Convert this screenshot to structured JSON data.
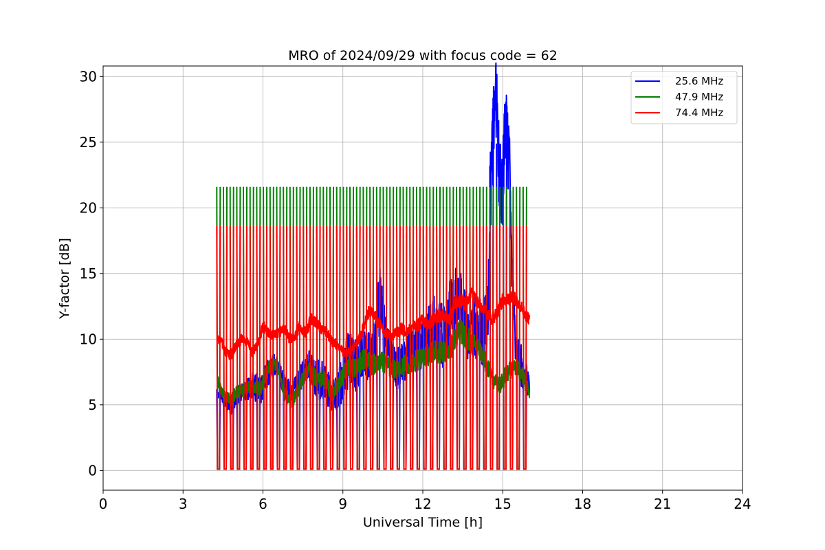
{
  "chart_data": {
    "type": "line",
    "title": "MRO of 2024/09/29 with focus code = 62",
    "xlabel": "Universal Time [h]",
    "ylabel": "Y-factor [dB]",
    "xlim": [
      0,
      24
    ],
    "ylim": [
      -1.5,
      30.8
    ],
    "xticks": [
      0,
      3,
      6,
      9,
      12,
      15,
      18,
      21,
      24
    ],
    "yticks": [
      0,
      5,
      10,
      15,
      20,
      25,
      30
    ],
    "grid": true,
    "legend_position": "top-right",
    "calibration": {
      "x_start": 4.33,
      "x_end": 16.0,
      "interval_h": 0.25,
      "low_value": 0.1
    },
    "series": [
      {
        "name": "25.6 MHz",
        "color": "#0000ff",
        "x": [
          4.3,
          4.5,
          4.8,
          5.0,
          5.3,
          5.6,
          5.9,
          6.2,
          6.5,
          6.8,
          7.1,
          7.4,
          7.7,
          8.0,
          8.3,
          8.6,
          8.9,
          9.2,
          9.5,
          9.8,
          10.1,
          10.4,
          10.7,
          11.0,
          11.3,
          11.6,
          11.9,
          12.2,
          12.5,
          12.8,
          13.1,
          13.4,
          13.7,
          14.0,
          14.3,
          14.45,
          14.55,
          14.65,
          14.75,
          14.85,
          14.95,
          15.05,
          15.15,
          15.25,
          15.35,
          15.5,
          15.7,
          16.0
        ],
        "values": [
          6.3,
          5.5,
          4.8,
          5.6,
          6.0,
          6.5,
          6.0,
          7.5,
          8.2,
          6.3,
          5.8,
          7.0,
          8.0,
          7.0,
          6.8,
          5.5,
          6.5,
          8.5,
          8.0,
          9.0,
          8.5,
          13.0,
          9.0,
          7.5,
          8.5,
          9.5,
          9.0,
          10.5,
          11.0,
          10.0,
          12.5,
          13.0,
          10.5,
          11.0,
          10.0,
          12.5,
          22.0,
          26.0,
          28.5,
          24.0,
          20.0,
          24.5,
          26.0,
          22.5,
          15.0,
          9.0,
          8.0,
          6.5
        ],
        "spread": [
          0.7,
          0.5,
          0.6,
          0.7,
          0.8,
          1.0,
          1.2,
          1.0,
          0.8,
          1.0,
          0.9,
          1.0,
          1.2,
          1.5,
          1.6,
          1.3,
          1.6,
          2.2,
          2.0,
          2.0,
          2.2,
          2.5,
          1.8,
          1.6,
          1.8,
          1.8,
          2.0,
          2.2,
          2.5,
          2.5,
          2.8,
          2.5,
          2.2,
          2.5,
          2.6,
          3.0,
          3.5,
          3.5,
          3.0,
          3.5,
          3.5,
          3.2,
          3.0,
          3.5,
          2.5,
          1.6,
          1.6,
          1.2
        ]
      },
      {
        "name": "47.9 MHz",
        "color": "#008000",
        "x": [
          4.3,
          4.5,
          4.8,
          5.0,
          5.3,
          5.6,
          5.9,
          6.2,
          6.5,
          6.8,
          7.1,
          7.4,
          7.7,
          8.0,
          8.3,
          8.6,
          8.9,
          9.2,
          9.5,
          9.8,
          10.1,
          10.4,
          10.7,
          11.0,
          11.3,
          11.6,
          11.9,
          12.2,
          12.5,
          12.8,
          13.1,
          13.4,
          13.7,
          14.0,
          14.3,
          14.6,
          14.9,
          15.2,
          15.5,
          15.8,
          16.0
        ],
        "values": [
          6.8,
          5.8,
          5.3,
          6.0,
          6.2,
          6.5,
          6.2,
          7.8,
          8.2,
          6.0,
          5.2,
          6.5,
          7.8,
          7.0,
          7.0,
          5.8,
          6.8,
          8.0,
          7.8,
          8.5,
          8.0,
          8.5,
          8.0,
          7.8,
          8.0,
          8.2,
          8.5,
          8.8,
          9.0,
          9.0,
          9.5,
          10.5,
          10.0,
          9.5,
          8.5,
          7.0,
          6.5,
          7.5,
          8.0,
          7.0,
          6.0
        ],
        "spread": [
          0.4,
          0.4,
          0.5,
          0.5,
          0.5,
          0.5,
          0.6,
          0.6,
          0.5,
          0.6,
          0.5,
          0.6,
          0.6,
          0.7,
          0.7,
          0.6,
          0.7,
          0.8,
          0.8,
          0.8,
          0.8,
          0.8,
          0.8,
          0.8,
          0.8,
          0.8,
          0.8,
          0.9,
          0.9,
          0.9,
          0.9,
          1.0,
          0.9,
          0.9,
          0.8,
          0.7,
          0.7,
          0.7,
          0.7,
          0.7,
          0.6
        ],
        "cal_top": 21.6
      },
      {
        "name": "74.4 MHz",
        "color": "#ff0000",
        "x": [
          4.3,
          4.45,
          4.6,
          4.8,
          5.0,
          5.2,
          5.4,
          5.6,
          5.8,
          6.0,
          6.2,
          6.4,
          6.6,
          6.8,
          7.0,
          7.2,
          7.4,
          7.6,
          7.8,
          8.0,
          8.2,
          8.4,
          8.6,
          8.8,
          9.0,
          9.2,
          9.4,
          9.6,
          9.8,
          10.0,
          10.2,
          10.4,
          10.6,
          10.8,
          11.0,
          11.2,
          11.4,
          11.6,
          11.8,
          12.0,
          12.2,
          12.4,
          12.6,
          12.8,
          13.0,
          13.2,
          13.4,
          13.6,
          13.8,
          14.0,
          14.2,
          14.4,
          14.6,
          14.8,
          15.0,
          15.2,
          15.4,
          15.6,
          15.8,
          16.0
        ],
        "values": [
          10.0,
          9.8,
          9.0,
          8.8,
          9.5,
          10.0,
          9.8,
          9.0,
          9.5,
          11.0,
          10.5,
          10.2,
          10.5,
          10.8,
          10.0,
          10.3,
          11.0,
          10.5,
          11.5,
          11.2,
          10.8,
          10.5,
          9.8,
          9.5,
          9.0,
          9.0,
          9.2,
          10.0,
          11.0,
          12.2,
          11.8,
          11.0,
          10.5,
          10.2,
          10.5,
          10.8,
          10.5,
          11.0,
          11.0,
          11.5,
          11.0,
          11.5,
          11.8,
          11.8,
          11.5,
          12.8,
          13.0,
          12.5,
          13.5,
          13.0,
          12.5,
          12.0,
          11.5,
          12.0,
          13.0,
          13.0,
          13.2,
          12.8,
          12.0,
          11.5
        ],
        "spread": [
          0.3,
          0.3,
          0.4,
          0.4,
          0.4,
          0.4,
          0.4,
          0.4,
          0.4,
          0.5,
          0.4,
          0.4,
          0.4,
          0.4,
          0.4,
          0.4,
          0.5,
          0.4,
          0.5,
          0.5,
          0.4,
          0.4,
          0.4,
          0.4,
          0.4,
          0.4,
          0.4,
          0.4,
          0.5,
          0.5,
          0.5,
          0.5,
          0.4,
          0.4,
          0.4,
          0.5,
          0.4,
          0.4,
          0.5,
          0.5,
          0.5,
          0.5,
          0.5,
          0.5,
          0.5,
          0.5,
          0.6,
          0.6,
          0.6,
          0.5,
          0.5,
          0.5,
          0.5,
          0.5,
          0.5,
          0.5,
          0.5,
          0.5,
          0.5,
          0.4
        ],
        "cal_top": 18.6
      }
    ]
  }
}
